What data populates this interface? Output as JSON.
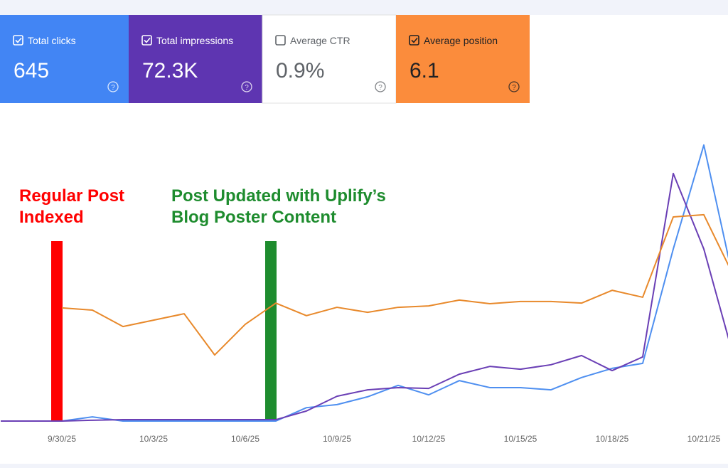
{
  "cards": [
    {
      "title": "Total clicks",
      "value": "645",
      "color": "#4285f4",
      "text_color": "#ffffff",
      "checked": true
    },
    {
      "title": "Total impressions",
      "value": "72.3K",
      "color": "#5e35b1",
      "text_color": "#ffffff",
      "checked": true
    },
    {
      "title": "Average CTR",
      "value": "0.9%",
      "color": "#ffffff",
      "text_color": "#5f6368",
      "checked": false
    },
    {
      "title": "Average position",
      "value": "6.1",
      "color": "#fb8c3c",
      "text_color": "#202124",
      "checked": true
    }
  ],
  "chart_data": {
    "type": "line",
    "categories": [
      null,
      null,
      "9/30/25",
      null,
      null,
      "10/3/25",
      null,
      null,
      "10/6/25",
      null,
      null,
      "10/9/25",
      null,
      null,
      "10/12/25",
      null,
      null,
      "10/15/25",
      null,
      null,
      "10/18/25",
      null,
      null,
      "10/21/25",
      null
    ],
    "series": [
      {
        "name": "Total clicks",
        "color": "#4e8ff0",
        "values": [
          0,
          0,
          0,
          1.5,
          0,
          0,
          0,
          0,
          0,
          0,
          4.8,
          5.9,
          8.7,
          12.8,
          9.4,
          14.5,
          12,
          12,
          11.2,
          15.6,
          18.9,
          20.7,
          61.7,
          99,
          49
        ]
      },
      {
        "name": "Total impressions",
        "color": "#6a3fb5",
        "values": [
          0,
          0,
          0,
          0.3,
          0.5,
          0.5,
          0.5,
          0.5,
          0.5,
          0.5,
          3.6,
          8.9,
          11.2,
          12,
          11.7,
          16.8,
          19.6,
          18.6,
          20.2,
          23.5,
          18.1,
          23,
          88.8,
          61.7,
          22
        ]
      },
      {
        "name": "Average position",
        "color": "#e8892b",
        "values": [
          null,
          null,
          40.6,
          39.8,
          33.9,
          36.2,
          38.5,
          23.7,
          34.7,
          42.3,
          37.8,
          40.8,
          39,
          40.8,
          41.3,
          43.4,
          42.1,
          42.9,
          42.9,
          42.3,
          46.9,
          44.4,
          73.2,
          74,
          51.5
        ]
      }
    ],
    "ylim": [
      0,
      100
    ],
    "annotations": [
      {
        "text": [
          "Regular Post",
          "Indexed"
        ],
        "color": "#ff0000",
        "category": 2
      },
      {
        "text": [
          "Post Updated with Uplify’s",
          "Blog Poster Content"
        ],
        "color": "#1e8c2e",
        "category": 9
      }
    ]
  }
}
